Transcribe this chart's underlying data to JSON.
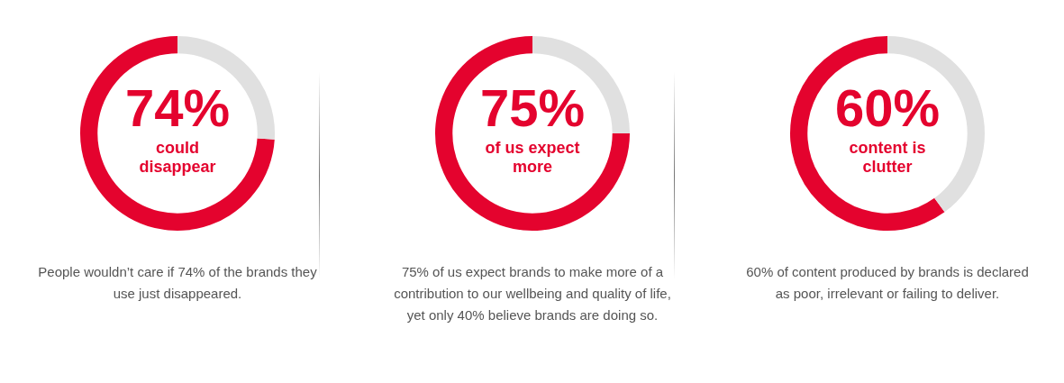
{
  "chart_data": [
    {
      "type": "donut",
      "categories": [
        null,
        null
      ],
      "values": [
        74,
        26
      ],
      "colors": [
        "#e4032e",
        "#e0e0e0"
      ],
      "value_labels": [
        "74%",
        null
      ],
      "subtitle": "could disappear",
      "annotations": [
        "People wouldn’t care if 74% of the brands they use just disappeared."
      ]
    },
    {
      "type": "donut",
      "categories": [
        null,
        null
      ],
      "values": [
        75,
        25
      ],
      "colors": [
        "#e4032e",
        "#e0e0e0"
      ],
      "value_labels": [
        "75%",
        null
      ],
      "subtitle": "of us expect more",
      "annotations": [
        "75% of us expect brands to make more of a contribution to our wellbeing and quality of life, yet only 40% believe brands are doing so."
      ]
    },
    {
      "type": "donut",
      "categories": [
        null,
        null
      ],
      "values": [
        60,
        40
      ],
      "colors": [
        "#e4032e",
        "#e0e0e0"
      ],
      "value_labels": [
        "60%",
        null
      ],
      "subtitle": "content is clutter",
      "annotations": [
        "60% of content produced by brands is declared as poor, irrelevant or failing to deliver."
      ]
    }
  ]
}
